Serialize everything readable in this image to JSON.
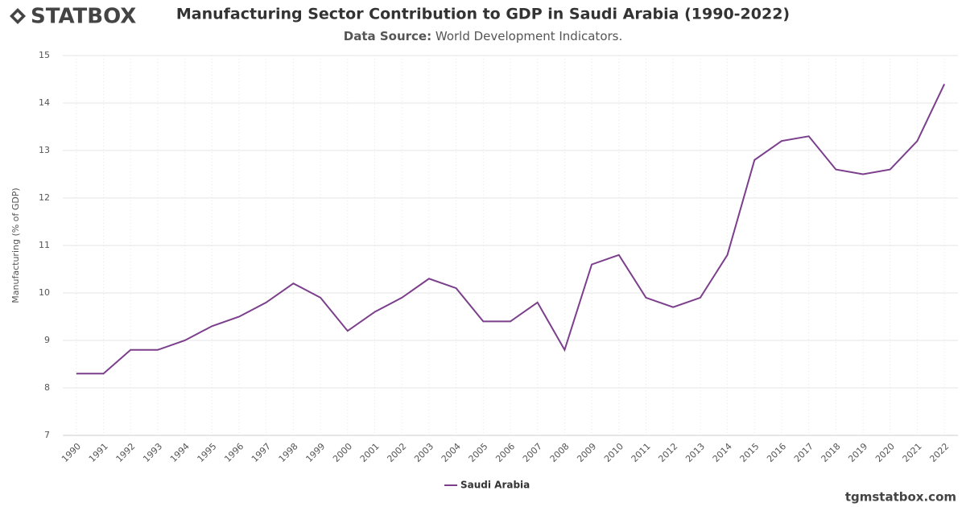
{
  "logo": "STATBOX",
  "footer": "tgmstatbox.com",
  "chart_data": {
    "type": "line",
    "title": "Manufacturing Sector Contribution to GDP in Saudi Arabia (1990-2022)",
    "subtitle_label": "Data Source:",
    "subtitle": "World Development Indicators.",
    "y_label": "Manufacturing (% of GDP)",
    "categories": [
      "1990",
      "1991",
      "1992",
      "1993",
      "1994",
      "1995",
      "1996",
      "1997",
      "1998",
      "1999",
      "2000",
      "2001",
      "2002",
      "2003",
      "2004",
      "2005",
      "2006",
      "2007",
      "2008",
      "2009",
      "2010",
      "2011",
      "2012",
      "2013",
      "2014",
      "2015",
      "2016",
      "2017",
      "2018",
      "2019",
      "2020",
      "2021",
      "2022"
    ],
    "series": [
      {
        "name": "Saudi Arabia",
        "color": "#7b3f8c",
        "values": [
          8.3,
          8.3,
          8.8,
          8.8,
          9.0,
          9.3,
          9.5,
          9.8,
          10.2,
          9.9,
          9.2,
          9.6,
          9.9,
          10.3,
          10.1,
          9.4,
          9.4,
          9.8,
          8.8,
          10.6,
          10.8,
          9.9,
          9.7,
          9.9,
          10.8,
          12.8,
          13.2,
          13.3,
          12.6,
          12.5,
          12.6,
          13.2,
          14.4
        ]
      }
    ],
    "ylim": [
      7,
      15
    ],
    "yticks": [
      7,
      8,
      9,
      10,
      11,
      12,
      13,
      14,
      15
    ],
    "grid": true,
    "legend": "bottom"
  }
}
